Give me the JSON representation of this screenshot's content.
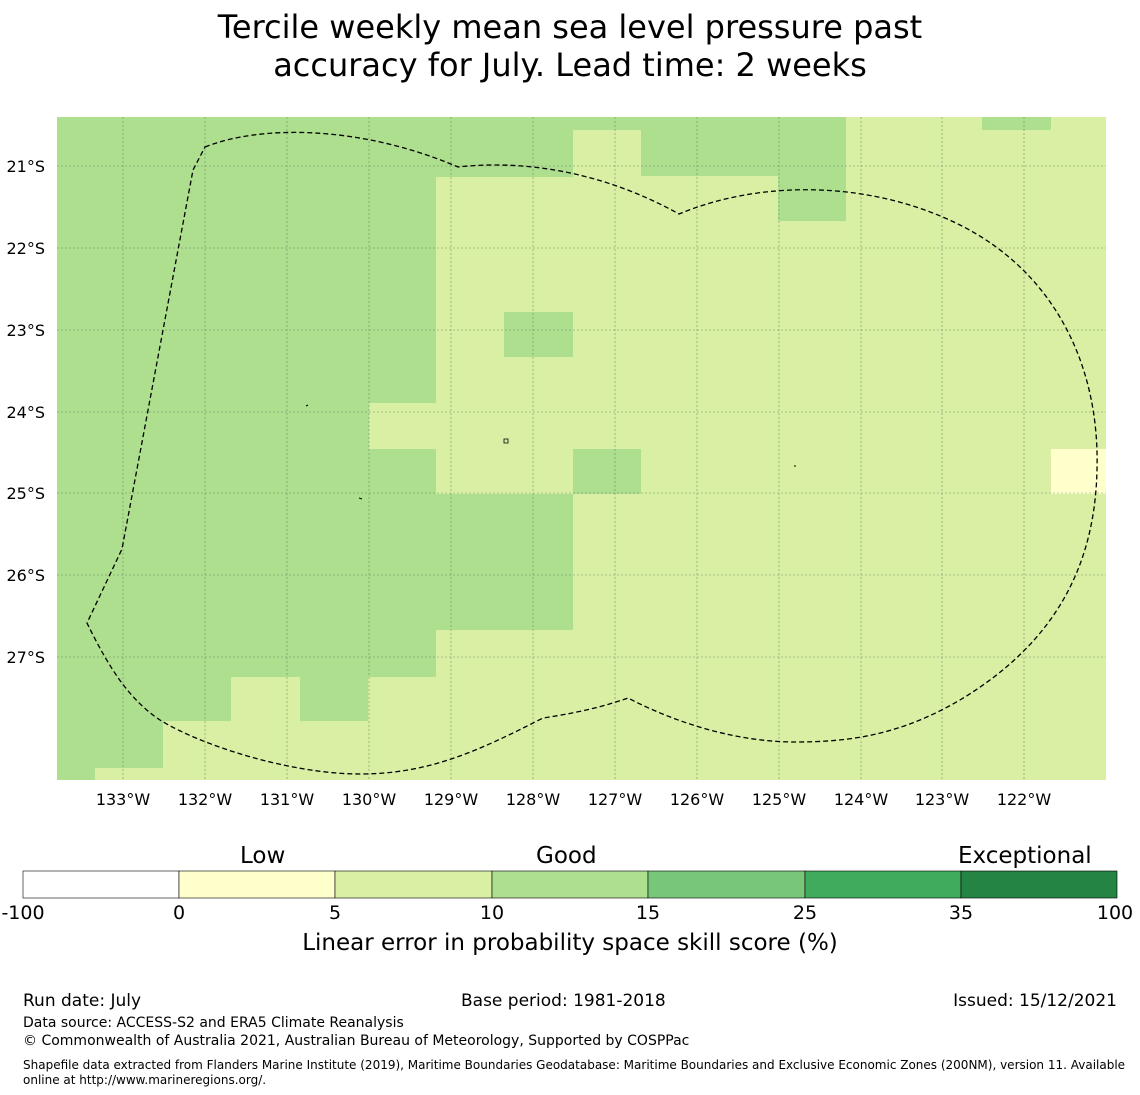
{
  "title": {
    "line1": "Tercile weekly mean sea level pressure past",
    "line2": "accuracy for July. Lead time: 2 weeks"
  },
  "map": {
    "lat_labels": [
      "21°S",
      "22°S",
      "23°S",
      "24°S",
      "25°S",
      "26°S",
      "27°S"
    ],
    "lon_labels": [
      "133°W",
      "132°W",
      "131°W",
      "130°W",
      "129°W",
      "128°W",
      "127°W",
      "126°W",
      "125°W",
      "124°W",
      "123°W",
      "122°W"
    ],
    "colors": {
      "good_10_15": "#addf8e",
      "low_5_10": "#d9efa3",
      "low_0_5": "#ffffcc",
      "boundary": "#000000",
      "grid": "#5a7a5a"
    }
  },
  "colorbar": {
    "category_labels": [
      "Low",
      "Good",
      "Exceptional"
    ],
    "ticks": [
      "-100",
      "0",
      "5",
      "10",
      "15",
      "25",
      "35",
      "100"
    ],
    "colors": [
      "#ffffff",
      "#ffffcc",
      "#d9efa3",
      "#addf8e",
      "#78c679",
      "#41ab5d",
      "#238443"
    ],
    "title": "Linear error in probability space skill score (%)"
  },
  "footer": {
    "run_date": "Run date: July",
    "base_period": "Base period: 1981-2018",
    "issued": "Issued: 15/12/2021",
    "data_source": "Data source: ACCESS-S2 and ERA5 Climate Reanalysis",
    "copyright": "© Commonwealth of Australia 2021, Australian Bureau of Meteorology, Supported by COSPPac",
    "shapefile": "Shapefile data extracted from Flanders Marine Institute (2019), Maritime Boundaries Geodatabase: Maritime Boundaries and Exclusive Economic Zones (200NM), version 11. Available online at http://www.marineregions.org/."
  }
}
